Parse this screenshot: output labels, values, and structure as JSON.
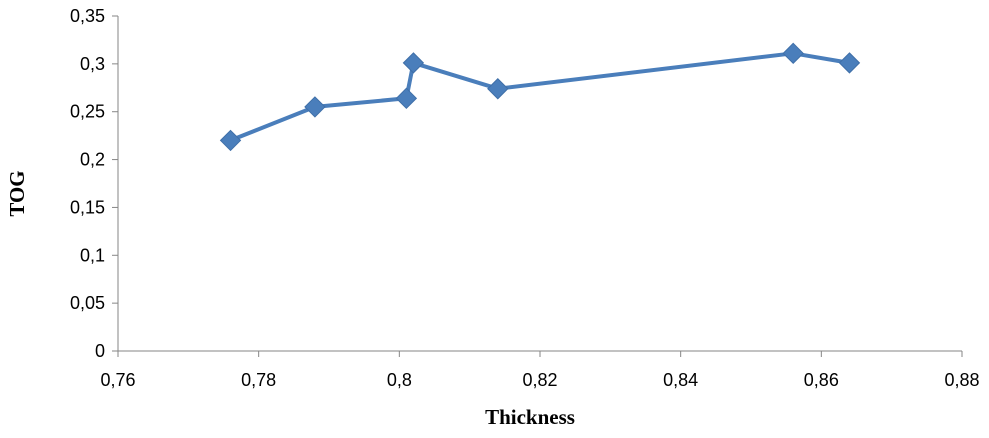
{
  "chart_data": {
    "type": "line",
    "title": "",
    "xlabel": "Thickness",
    "ylabel": "TOG",
    "xlim": [
      0.76,
      0.88
    ],
    "ylim": [
      0,
      0.35
    ],
    "x_ticks": [
      0.76,
      0.78,
      0.8,
      0.82,
      0.84,
      0.86,
      0.88
    ],
    "x_tick_labels": [
      "0,76",
      "0,78",
      "0,8",
      "0,82",
      "0,84",
      "0,86",
      "0,88"
    ],
    "y_ticks": [
      0,
      0.05,
      0.1,
      0.15,
      0.2,
      0.25,
      0.3,
      0.35
    ],
    "y_tick_labels": [
      "0",
      "0,05",
      "0,1",
      "0,15",
      "0,2",
      "0,25",
      "0,3",
      "0,35"
    ],
    "grid": false,
    "legend": "none",
    "series": [
      {
        "color": "#4a7ebb",
        "marker": "diamond",
        "points": [
          {
            "x": 0.776,
            "y": 0.22
          },
          {
            "x": 0.788,
            "y": 0.255
          },
          {
            "x": 0.801,
            "y": 0.264
          },
          {
            "x": 0.802,
            "y": 0.301
          },
          {
            "x": 0.814,
            "y": 0.274
          },
          {
            "x": 0.856,
            "y": 0.311
          },
          {
            "x": 0.864,
            "y": 0.301
          }
        ]
      }
    ]
  }
}
